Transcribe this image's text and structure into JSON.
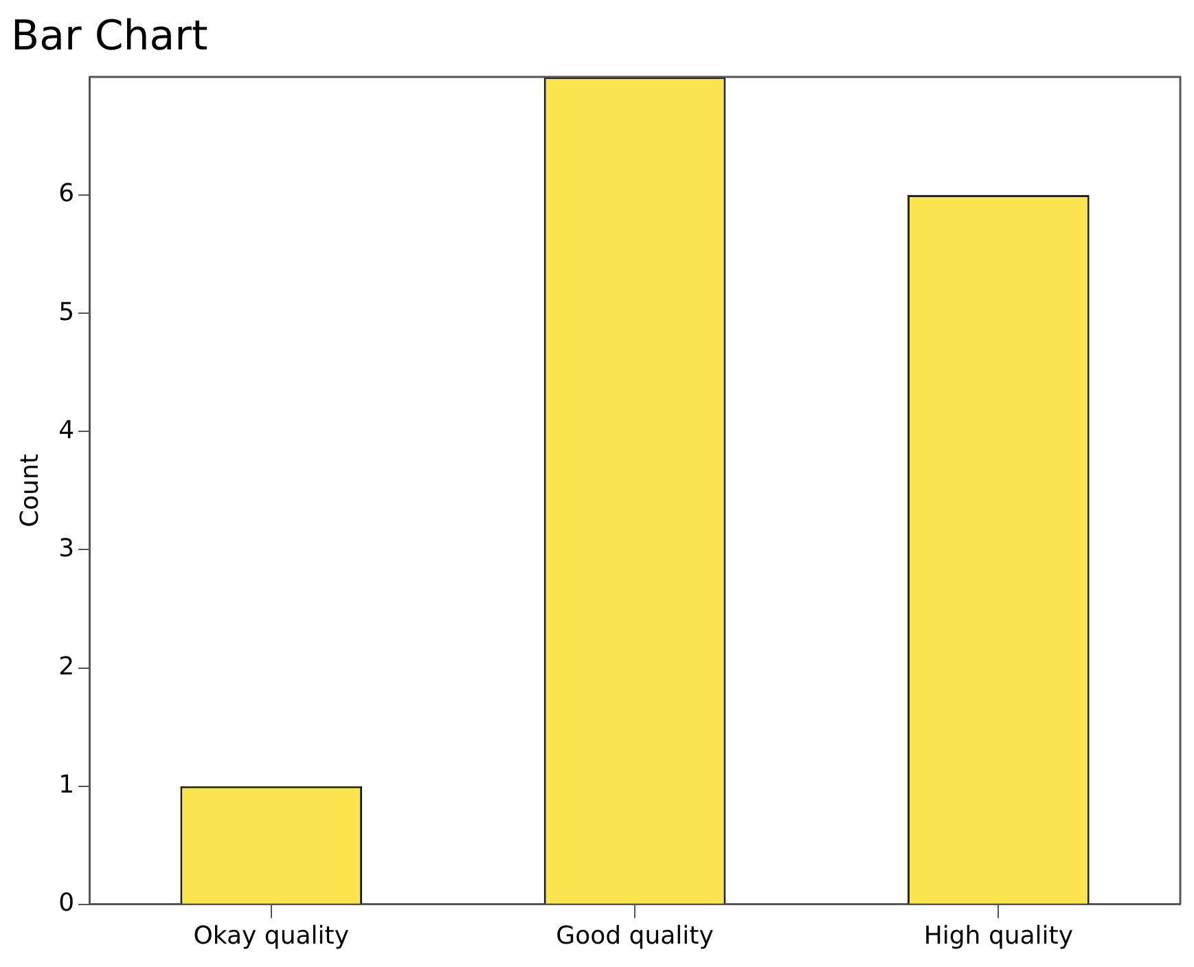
{
  "chart_data": {
    "type": "bar",
    "title": "Bar Chart",
    "ylabel": "Count",
    "categories": [
      "Okay quality",
      "Good quality",
      "High quality"
    ],
    "values": [
      1,
      7,
      6
    ],
    "color": "#fbe44d",
    "ylim": [
      0,
      7
    ],
    "yticks": [
      0,
      1,
      2,
      3,
      4,
      5,
      6
    ]
  }
}
